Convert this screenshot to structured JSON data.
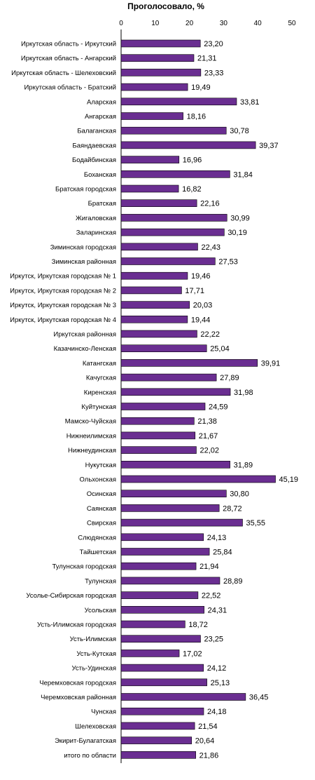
{
  "chart_data": {
    "type": "bar",
    "orientation": "horizontal",
    "title": "Проголосовало, %",
    "xlabel": "",
    "ylabel": "",
    "xlim": [
      0,
      50
    ],
    "ticks": [
      "0",
      "10",
      "20",
      "30",
      "40",
      "50"
    ],
    "grid": false,
    "legend": "none",
    "bar_color": "#6a2e91",
    "categories": [
      "Иркутская область - Иркутский",
      "Иркутская область - Ангарский",
      "Иркутская область - Шелеховский",
      "Иркутская область - Братский",
      "Аларская",
      "Ангарская",
      "Балаганская",
      "Баяндаевская",
      "Бодайбинская",
      "Боханская",
      "Братская городская",
      "Братская",
      "Жигаловская",
      "Заларинская",
      "Зиминская городская",
      "Зиминская районная",
      "Иркутск, Иркутская городская № 1",
      "Иркутск, Иркутская городская № 2",
      "Иркутск, Иркутская городская № 3",
      "Иркутск, Иркутская городская № 4",
      "Иркутская районная",
      "Казачинско-Ленская",
      "Катангская",
      "Качугская",
      "Киренская",
      "Куйтунская",
      "Мамско-Чуйская",
      "Нижнеилимская",
      "Нижнеудинская",
      "Нукутская",
      "Ольхонская",
      "Осинская",
      "Саянская",
      "Свирская",
      "Слюдянская",
      "Тайшетская",
      "Тулунская городская",
      "Тулунская",
      "Усолье-Сибирская городская",
      "Усольская",
      "Усть-Илимская городская",
      "Усть-Илимская",
      "Усть-Кутская",
      "Усть-Удинская",
      "Черемховская городская",
      "Черемховская районная",
      "Чунская",
      "Шелеховская",
      "Экирит-Булагатская",
      "итого по области"
    ],
    "values": [
      23.2,
      21.31,
      23.33,
      19.49,
      33.81,
      18.16,
      30.78,
      39.37,
      16.96,
      31.84,
      16.82,
      22.16,
      30.99,
      30.19,
      22.43,
      27.53,
      19.46,
      17.71,
      20.03,
      19.44,
      22.22,
      25.04,
      39.91,
      27.89,
      31.98,
      24.59,
      21.38,
      21.67,
      22.02,
      31.89,
      45.19,
      30.8,
      28.72,
      35.55,
      24.13,
      25.84,
      21.94,
      28.89,
      22.52,
      24.31,
      18.72,
      23.25,
      17.02,
      24.12,
      25.13,
      36.45,
      24.18,
      21.54,
      20.64,
      21.86
    ],
    "value_labels": [
      "23,20",
      "21,31",
      "23,33",
      "19,49",
      "33,81",
      "18,16",
      "30,78",
      "39,37",
      "16,96",
      "31,84",
      "16,82",
      "22,16",
      "30,99",
      "30,19",
      "22,43",
      "27,53",
      "19,46",
      "17,71",
      "20,03",
      "19,44",
      "22,22",
      "25,04",
      "39,91",
      "27,89",
      "31,98",
      "24,59",
      "21,38",
      "21,67",
      "22,02",
      "31,89",
      "45,19",
      "30,80",
      "28,72",
      "35,55",
      "24,13",
      "25,84",
      "21,94",
      "28,89",
      "22,52",
      "24,31",
      "18,72",
      "23,25",
      "17,02",
      "24,12",
      "25,13",
      "36,45",
      "24,18",
      "21,54",
      "20,64",
      "21,86"
    ]
  }
}
